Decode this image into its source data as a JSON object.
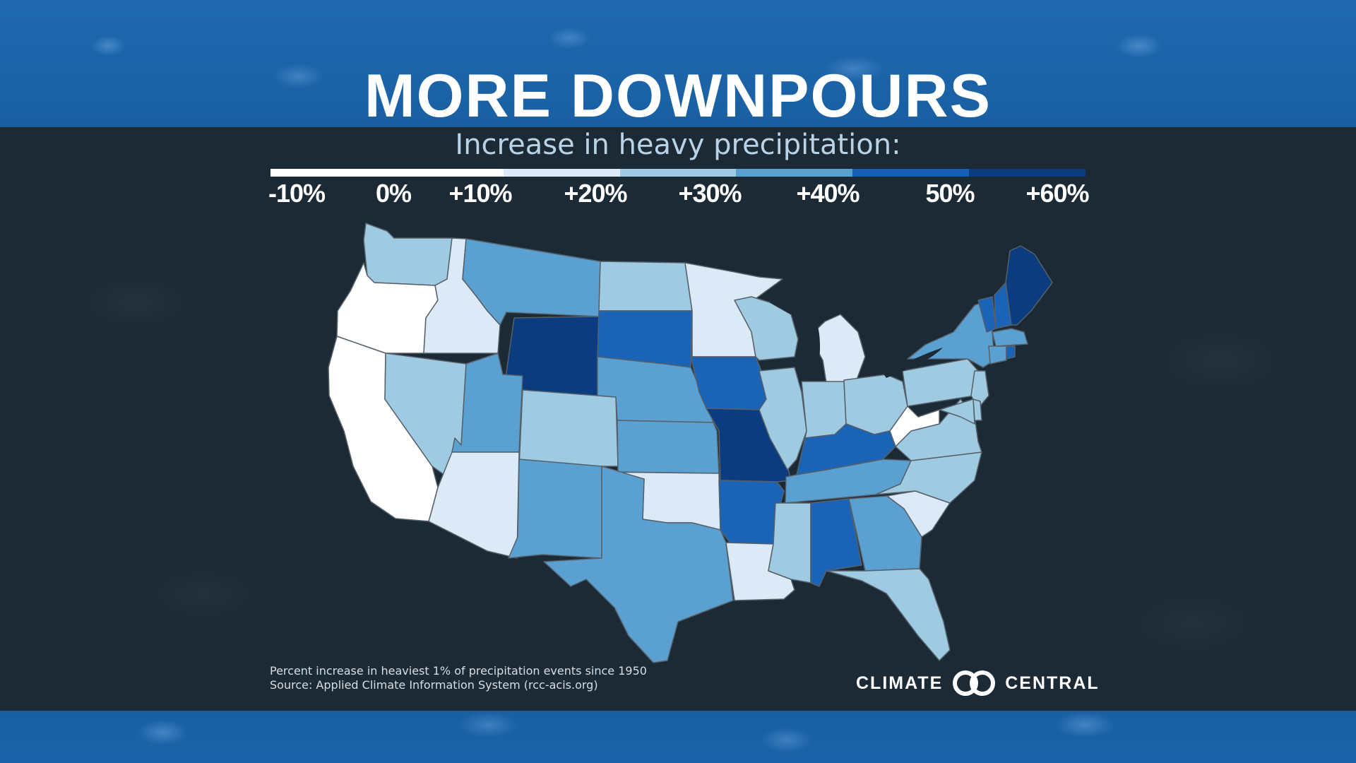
{
  "title": "MORE DOWNPOURS",
  "subtitle": "Increase in heavy precipitation:",
  "legend": {
    "colors": [
      "#ffffff",
      "#ffffff",
      "#dce9f6",
      "#9fcbe2",
      "#5aa0d1",
      "#1560b4",
      "#0a3c7f"
    ],
    "ticks": [
      "-10%",
      "0%",
      "+10%",
      "+20%",
      "+30%",
      "+40%",
      "50%",
      "+60%"
    ]
  },
  "map_classes": {
    "c0": "#ffffff",
    "c1": "#dce9f6",
    "c2": "#9fcbe2",
    "c3": "#5aa0d1",
    "c4": "#1a63b6",
    "c5": "#0a3c7f"
  },
  "states": [
    {
      "name": "Washington",
      "cls": "c2"
    },
    {
      "name": "Oregon",
      "cls": "c0"
    },
    {
      "name": "California",
      "cls": "c0"
    },
    {
      "name": "Idaho",
      "cls": "c1"
    },
    {
      "name": "Nevada",
      "cls": "c2"
    },
    {
      "name": "Montana",
      "cls": "c3"
    },
    {
      "name": "Wyoming",
      "cls": "c5"
    },
    {
      "name": "Utah",
      "cls": "c3"
    },
    {
      "name": "Arizona",
      "cls": "c1"
    },
    {
      "name": "Colorado",
      "cls": "c2"
    },
    {
      "name": "New Mexico",
      "cls": "c3"
    },
    {
      "name": "North Dakota",
      "cls": "c2"
    },
    {
      "name": "South Dakota",
      "cls": "c4"
    },
    {
      "name": "Nebraska",
      "cls": "c3"
    },
    {
      "name": "Kansas",
      "cls": "c3"
    },
    {
      "name": "Oklahoma",
      "cls": "c1"
    },
    {
      "name": "Texas",
      "cls": "c3"
    },
    {
      "name": "Minnesota",
      "cls": "c1"
    },
    {
      "name": "Iowa",
      "cls": "c4"
    },
    {
      "name": "Missouri",
      "cls": "c5"
    },
    {
      "name": "Arkansas",
      "cls": "c4"
    },
    {
      "name": "Louisiana",
      "cls": "c1"
    },
    {
      "name": "Wisconsin",
      "cls": "c2"
    },
    {
      "name": "Illinois",
      "cls": "c2"
    },
    {
      "name": "Michigan",
      "cls": "c1"
    },
    {
      "name": "Indiana",
      "cls": "c2"
    },
    {
      "name": "Ohio",
      "cls": "c2"
    },
    {
      "name": "Kentucky",
      "cls": "c4"
    },
    {
      "name": "Tennessee",
      "cls": "c3"
    },
    {
      "name": "Mississippi",
      "cls": "c2"
    },
    {
      "name": "Alabama",
      "cls": "c4"
    },
    {
      "name": "Georgia",
      "cls": "c3"
    },
    {
      "name": "Florida",
      "cls": "c2"
    },
    {
      "name": "South Carolina",
      "cls": "c1"
    },
    {
      "name": "North Carolina",
      "cls": "c2"
    },
    {
      "name": "Virginia",
      "cls": "c2"
    },
    {
      "name": "West Virginia",
      "cls": "c0"
    },
    {
      "name": "Pennsylvania",
      "cls": "c2"
    },
    {
      "name": "New York",
      "cls": "c3"
    },
    {
      "name": "Vermont",
      "cls": "c4"
    },
    {
      "name": "New Hampshire",
      "cls": "c4"
    },
    {
      "name": "Maine",
      "cls": "c5"
    },
    {
      "name": "Massachusetts",
      "cls": "c3"
    },
    {
      "name": "Connecticut",
      "cls": "c3"
    },
    {
      "name": "Rhode Island",
      "cls": "c4"
    },
    {
      "name": "New Jersey",
      "cls": "c2"
    },
    {
      "name": "Delaware",
      "cls": "c2"
    },
    {
      "name": "Maryland",
      "cls": "c2"
    }
  ],
  "notes": {
    "line1": "Percent increase in heaviest 1% of precipitation events since 1950",
    "line2": "Source: Applied Climate Information System (rcc-acis.org)"
  },
  "logo": {
    "left": "CLIMATE",
    "right": "CENTRAL"
  }
}
